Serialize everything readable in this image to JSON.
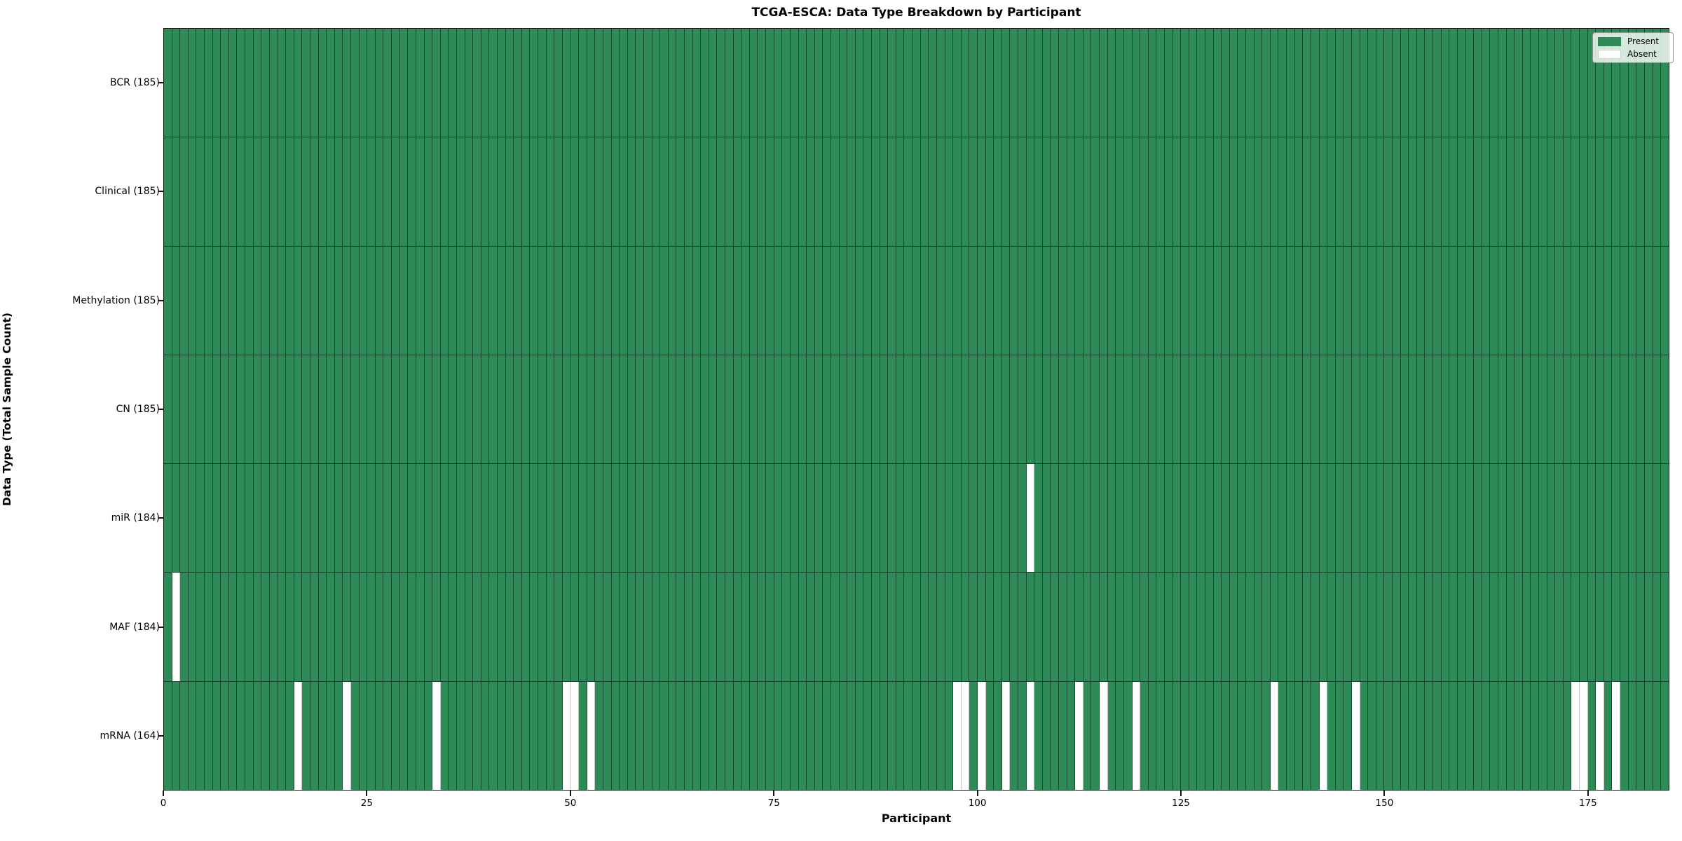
{
  "title": "TCGA-ESCA: Data Type Breakdown by Participant",
  "axes": {
    "xlabel": "Participant",
    "ylabel": "Data Type (Total Sample Count)"
  },
  "legend": {
    "present_label": "Present",
    "absent_label": "Absent"
  },
  "colors": {
    "present": "#2e8b57",
    "absent": "#ffffff",
    "cell_edge": "#0c3621",
    "spine": "#141414"
  },
  "chart_data": {
    "type": "heatmap",
    "title": "TCGA-ESCA: Data Type Breakdown by Participant",
    "xlabel": "Participant",
    "ylabel": "Data Type (Total Sample Count)",
    "n_participants": 185,
    "x_range": [
      0,
      185
    ],
    "x_ticks": [
      0,
      25,
      50,
      75,
      100,
      125,
      150,
      175
    ],
    "grid": false,
    "legend_position": "upper right",
    "legend_entries": [
      {
        "label": "Present",
        "color": "#2e8b57"
      },
      {
        "label": "Absent",
        "color": "#ffffff"
      }
    ],
    "rows": [
      {
        "label": "BCR (185)",
        "data_type": "BCR",
        "present_count": 185,
        "absent_participants": []
      },
      {
        "label": "Clinical (185)",
        "data_type": "Clinical",
        "present_count": 185,
        "absent_participants": []
      },
      {
        "label": "Methylation (185)",
        "data_type": "Methylation",
        "present_count": 185,
        "absent_participants": []
      },
      {
        "label": "CN (185)",
        "data_type": "CN",
        "present_count": 185,
        "absent_participants": []
      },
      {
        "label": "miR (184)",
        "data_type": "miR",
        "present_count": 184,
        "absent_participants": [
          106
        ]
      },
      {
        "label": "MAF (184)",
        "data_type": "MAF",
        "present_count": 184,
        "absent_participants": [
          1
        ]
      },
      {
        "label": "mRNA (164)",
        "data_type": "mRNA",
        "present_count": 164,
        "absent_participants": [
          16,
          22,
          33,
          49,
          50,
          52,
          97,
          98,
          100,
          103,
          106,
          112,
          115,
          119,
          136,
          142,
          146,
          173,
          174,
          176,
          178
        ]
      }
    ]
  }
}
